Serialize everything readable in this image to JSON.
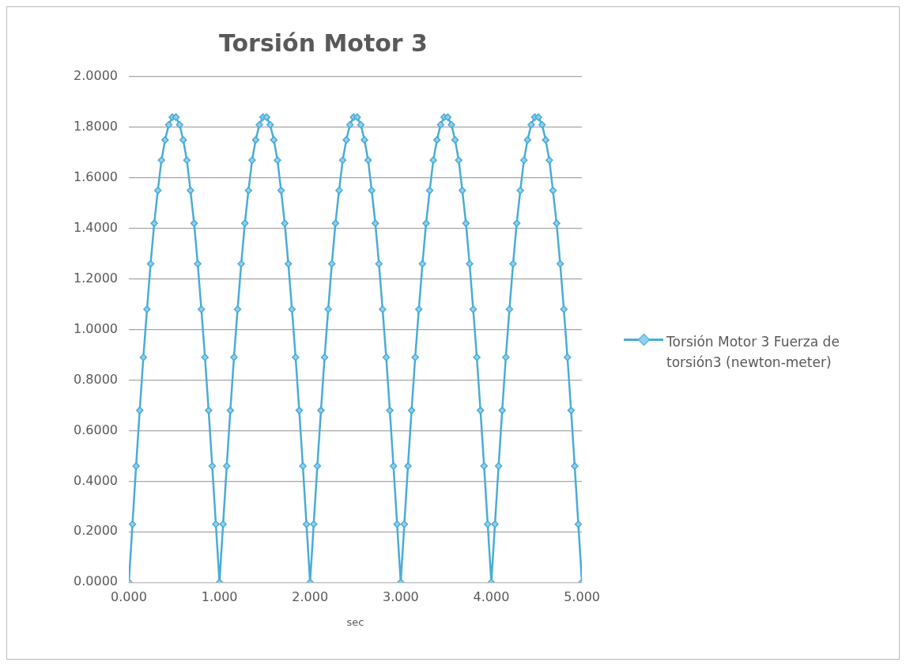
{
  "chart_data": {
    "type": "line",
    "title": "Torsión Motor 3",
    "xlabel": "sec",
    "x": [
      0,
      0.04,
      0.08,
      0.12,
      0.16,
      0.2,
      0.24,
      0.28,
      0.32,
      0.36,
      0.4,
      0.44,
      0.48,
      0.52,
      0.56,
      0.6,
      0.64,
      0.68,
      0.72,
      0.76,
      0.8,
      0.84,
      0.88,
      0.92,
      0.96,
      1,
      1.04,
      1.08,
      1.12,
      1.16,
      1.2,
      1.24,
      1.28,
      1.32,
      1.36,
      1.4,
      1.44,
      1.48,
      1.52,
      1.56,
      1.6,
      1.64,
      1.68,
      1.72,
      1.76,
      1.8,
      1.84,
      1.88,
      1.92,
      1.96,
      2,
      2.04,
      2.08,
      2.12,
      2.16,
      2.2,
      2.24,
      2.28,
      2.32,
      2.36,
      2.4,
      2.44,
      2.48,
      2.52,
      2.56,
      2.6,
      2.64,
      2.68,
      2.72,
      2.76,
      2.8,
      2.84,
      2.88,
      2.92,
      2.96,
      3,
      3.04,
      3.08,
      3.12,
      3.16,
      3.2,
      3.24,
      3.28,
      3.32,
      3.36,
      3.4,
      3.44,
      3.48,
      3.52,
      3.56,
      3.6,
      3.64,
      3.68,
      3.72,
      3.76,
      3.8,
      3.84,
      3.88,
      3.92,
      3.96,
      4,
      4.04,
      4.08,
      4.12,
      4.16,
      4.2,
      4.24,
      4.28,
      4.32,
      4.36,
      4.4,
      4.44,
      4.48,
      4.52,
      4.56,
      4.6,
      4.64,
      4.68,
      4.72,
      4.76,
      4.8,
      4.84,
      4.88,
      4.92,
      4.96,
      5
    ],
    "series": [
      {
        "name": "Torsión Motor 3  Fuerza de torsión3 (newton-meter)",
        "color": "#4aacd6",
        "values": [
          0,
          0.23,
          0.46,
          0.68,
          0.89,
          1.08,
          1.26,
          1.42,
          1.55,
          1.67,
          1.75,
          1.81,
          1.84,
          1.84,
          1.81,
          1.75,
          1.67,
          1.55,
          1.42,
          1.26,
          1.08,
          0.89,
          0.68,
          0.46,
          0.23,
          0,
          0.23,
          0.46,
          0.68,
          0.89,
          1.08,
          1.26,
          1.42,
          1.55,
          1.67,
          1.75,
          1.81,
          1.84,
          1.84,
          1.81,
          1.75,
          1.67,
          1.55,
          1.42,
          1.26,
          1.08,
          0.89,
          0.68,
          0.46,
          0.23,
          0,
          0.23,
          0.46,
          0.68,
          0.89,
          1.08,
          1.26,
          1.42,
          1.55,
          1.67,
          1.75,
          1.81,
          1.84,
          1.84,
          1.81,
          1.75,
          1.67,
          1.55,
          1.42,
          1.26,
          1.08,
          0.89,
          0.68,
          0.46,
          0.23,
          0,
          0.23,
          0.46,
          0.68,
          0.89,
          1.08,
          1.26,
          1.42,
          1.55,
          1.67,
          1.75,
          1.81,
          1.84,
          1.84,
          1.81,
          1.75,
          1.67,
          1.55,
          1.42,
          1.26,
          1.08,
          0.89,
          0.68,
          0.46,
          0.23,
          0,
          0.23,
          0.46,
          0.68,
          0.89,
          1.08,
          1.26,
          1.42,
          1.55,
          1.67,
          1.75,
          1.81,
          1.84,
          1.84,
          1.81,
          1.75,
          1.67,
          1.55,
          1.42,
          1.26,
          1.08,
          0.89,
          0.68,
          0.46,
          0.23,
          0
        ]
      }
    ],
    "xlim": [
      0,
      5
    ],
    "xticks": [
      {
        "value": 0,
        "label": "0.000"
      },
      {
        "value": 1,
        "label": "1.000"
      },
      {
        "value": 2,
        "label": "2.000"
      },
      {
        "value": 3,
        "label": "3.000"
      },
      {
        "value": 4,
        "label": "4.000"
      },
      {
        "value": 5,
        "label": "5.000"
      }
    ],
    "ylim": [
      0,
      2
    ],
    "yticks": [
      {
        "value": 0,
        "label": "0.0000"
      },
      {
        "value": 0.2,
        "label": "0.2000"
      },
      {
        "value": 0.4,
        "label": "0.4000"
      },
      {
        "value": 0.6,
        "label": "0.6000"
      },
      {
        "value": 0.8,
        "label": "0.8000"
      },
      {
        "value": 1,
        "label": "1.0000"
      },
      {
        "value": 1.2,
        "label": "1.2000"
      },
      {
        "value": 1.4,
        "label": "1.4000"
      },
      {
        "value": 1.6,
        "label": "1.6000"
      },
      {
        "value": 1.8,
        "label": "1.8000"
      },
      {
        "value": 2,
        "label": "2.0000"
      }
    ],
    "grid": "y",
    "legend": "right",
    "marker": "diamond",
    "line_style": "solid"
  }
}
